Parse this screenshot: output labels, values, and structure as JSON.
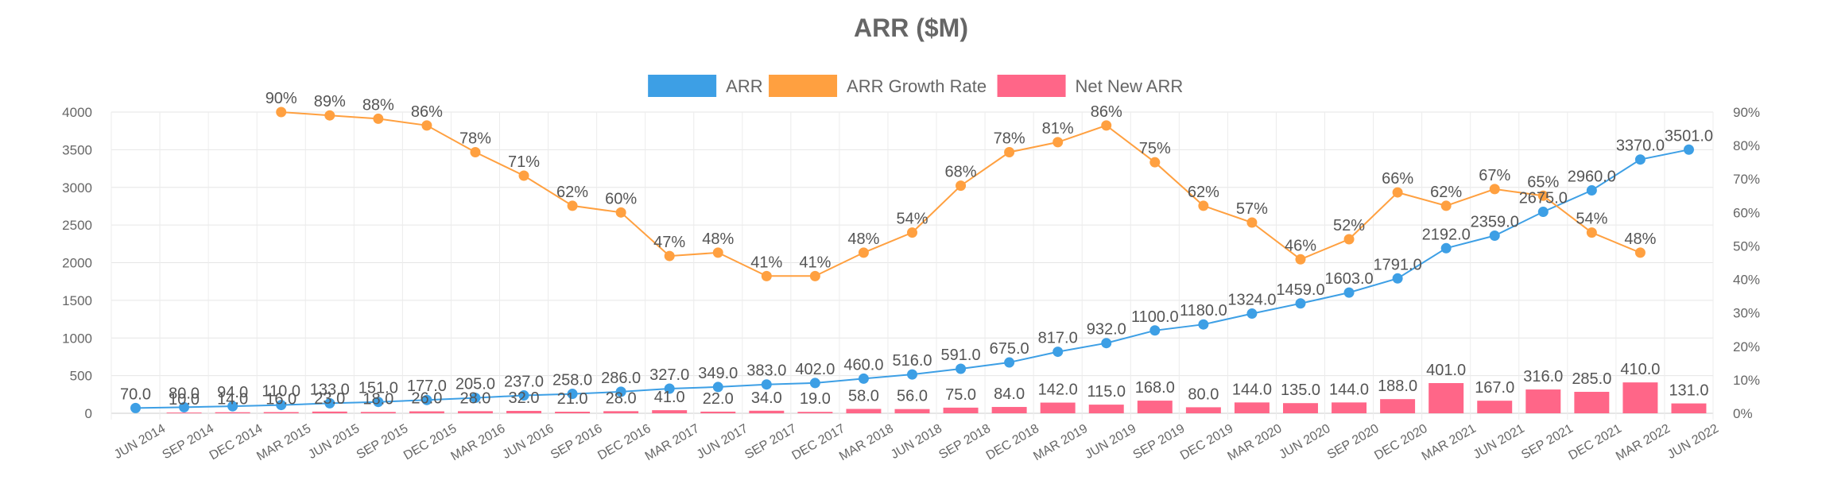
{
  "chart_data": {
    "type": "bar",
    "title": "ARR ($M)",
    "categories": [
      "JUN 2014",
      "SEP 2014",
      "DEC 2014",
      "MAR 2015",
      "JUN 2015",
      "SEP 2015",
      "DEC 2015",
      "MAR 2016",
      "JUN 2016",
      "SEP 2016",
      "DEC 2016",
      "MAR 2017",
      "JUN 2017",
      "SEP 2017",
      "DEC 2017",
      "MAR 2018",
      "JUN 2018",
      "SEP 2018",
      "DEC 2018",
      "MAR 2019",
      "JUN 2019",
      "SEP 2019",
      "DEC 2019",
      "MAR 2020",
      "JUN 2020",
      "SEP 2020",
      "DEC 2020",
      "MAR 2021",
      "JUN 2021",
      "SEP 2021",
      "DEC 2021",
      "MAR 2022",
      "JUN 2022"
    ],
    "legend_position": "top",
    "y_left": {
      "ticks": [
        "0",
        "500",
        "1000",
        "1500",
        "2000",
        "2500",
        "3000",
        "3500",
        "4000"
      ],
      "ylim": [
        0,
        4000
      ]
    },
    "y_right": {
      "ticks": [
        "0%",
        "10%",
        "20%",
        "30%",
        "40%",
        "50%",
        "60%",
        "70%",
        "80%",
        "90%"
      ],
      "ylim": [
        0,
        90
      ]
    },
    "series": [
      {
        "name": "ARR",
        "type": "line",
        "axis": "left",
        "color": "#3d9fe5",
        "values": [
          70,
          80,
          94,
          110,
          133,
          151,
          177,
          205,
          237,
          258,
          286,
          327,
          349,
          383,
          402,
          460,
          516,
          591,
          675,
          817,
          932,
          1100,
          1180,
          1324,
          1459,
          1603,
          1791,
          2192,
          2359,
          2675,
          2960,
          3370,
          3501
        ],
        "labels": [
          "70.0",
          "80.0",
          "94.0",
          "110.0",
          "133.0",
          "151.0",
          "177.0",
          "205.0",
          "237.0",
          "258.0",
          "286.0",
          "327.0",
          "349.0",
          "383.0",
          "402.0",
          "460.0",
          "516.0",
          "591.0",
          "675.0",
          "817.0",
          "932.0",
          "1100.0",
          "1180.0",
          "1324.0",
          "1459.0",
          "1603.0",
          "1791.0",
          "2192.0",
          "2359.0",
          "2675.0",
          "2960.0",
          "3370.0",
          "3501.0"
        ]
      },
      {
        "name": "ARR Growth Rate",
        "type": "line",
        "axis": "right",
        "color": "#ffa040",
        "values": [
          null,
          null,
          null,
          90,
          89,
          88,
          86,
          78,
          71,
          62,
          60,
          47,
          48,
          41,
          41,
          48,
          54,
          68,
          78,
          81,
          86,
          75,
          62,
          57,
          46,
          52,
          66,
          62,
          67,
          65,
          54,
          48,
          null
        ],
        "labels": [
          "",
          "",
          "",
          "90%",
          "89%",
          "88%",
          "86%",
          "78%",
          "71%",
          "62%",
          "60%",
          "47%",
          "48%",
          "41%",
          "41%",
          "48%",
          "54%",
          "68%",
          "78%",
          "81%",
          "86%",
          "75%",
          "62%",
          "57%",
          "46%",
          "52%",
          "66%",
          "62%",
          "67%",
          "65%",
          "54%",
          "48%",
          ""
        ]
      },
      {
        "name": "Net New ARR",
        "type": "bar",
        "axis": "left",
        "color": "#ff6688",
        "values": [
          null,
          10,
          14,
          16,
          23,
          18,
          26,
          28,
          32,
          21,
          28,
          41,
          22,
          34,
          19,
          58,
          56,
          75,
          84,
          142,
          115,
          168,
          80,
          144,
          135,
          144,
          188,
          401,
          167,
          316,
          285,
          410,
          131
        ],
        "labels": [
          "",
          "10.0",
          "14.0",
          "16.0",
          "23.0",
          "18.0",
          "26.0",
          "28.0",
          "32.0",
          "21.0",
          "28.0",
          "41.0",
          "22.0",
          "34.0",
          "19.0",
          "58.0",
          "56.0",
          "75.0",
          "84.0",
          "142.0",
          "115.0",
          "168.0",
          "80.0",
          "144.0",
          "135.0",
          "144.0",
          "188.0",
          "401.0",
          "167.0",
          "316.0",
          "285.0",
          "410.0",
          "131.0"
        ]
      }
    ]
  }
}
